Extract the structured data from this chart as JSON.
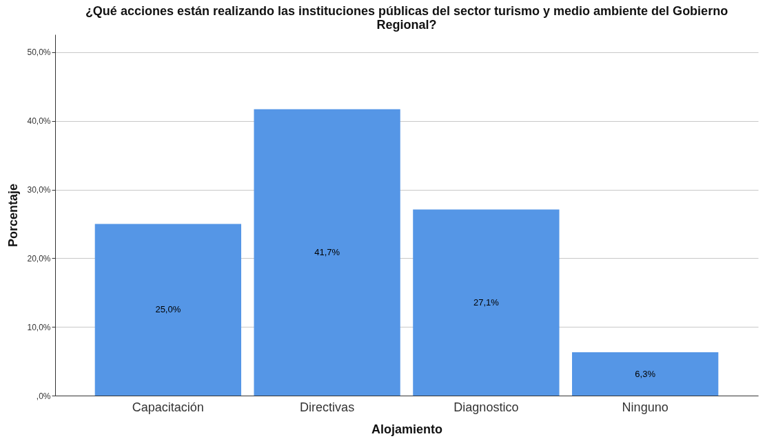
{
  "chart_data": {
    "type": "bar",
    "title": [
      "¿Qué acciones están realizando las instituciones públicas del sector turismo y medio ambiente del Gobierno",
      "Regional?"
    ],
    "xlabel": "Alojamiento",
    "ylabel": "Porcentaje",
    "categories": [
      "Capacitación",
      "Directivas",
      "Diagnostico",
      "Ninguno"
    ],
    "values": [
      25.0,
      41.7,
      27.1,
      6.3
    ],
    "value_labels": [
      "25,0%",
      "41,7%",
      "27,1%",
      "6,3%"
    ],
    "color": "#5596e6",
    "ylim": [
      0,
      52.6
    ],
    "yticks": [
      {
        "value": 0,
        "label": ",0%"
      },
      {
        "value": 10,
        "label": "10,0%"
      },
      {
        "value": 20,
        "label": "20,0%"
      },
      {
        "value": 30,
        "label": "30,0%"
      },
      {
        "value": 40,
        "label": "40,0%"
      },
      {
        "value": 50,
        "label": "50,0%"
      }
    ],
    "grid": "y"
  }
}
